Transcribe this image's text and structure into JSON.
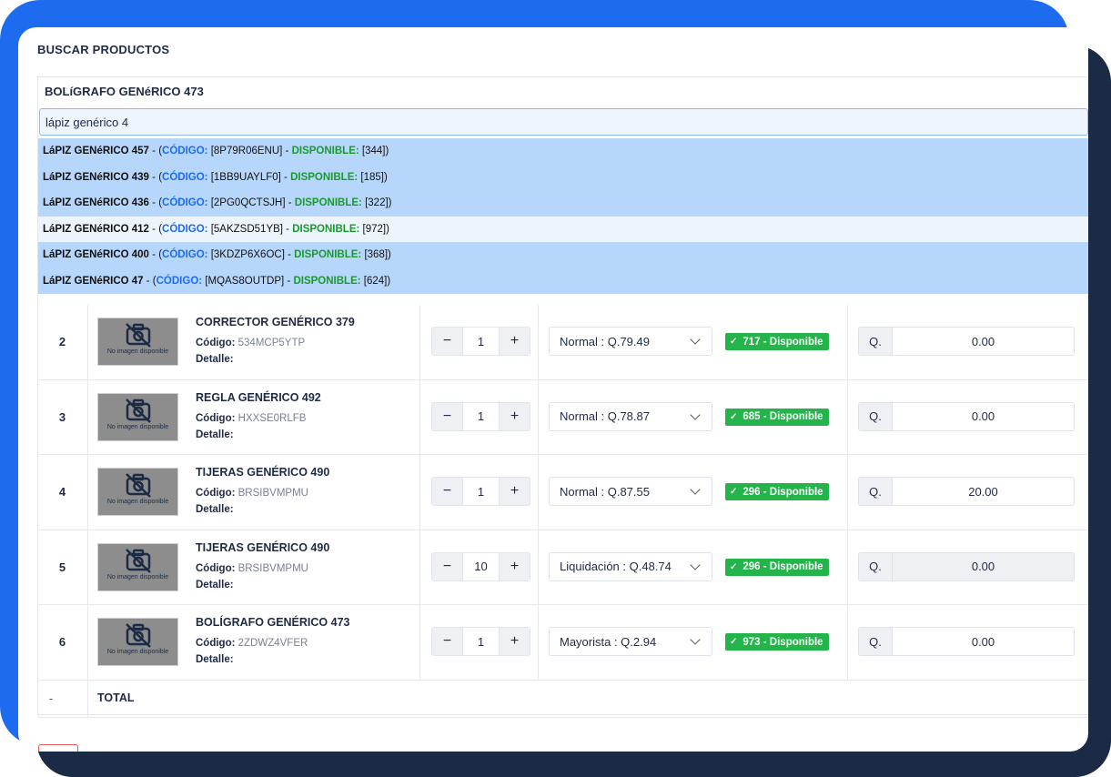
{
  "section_title": "BUSCAR PRODUCTOS",
  "selected_product": "BOLíGRAFO GENéRICO 473",
  "search": {
    "value": "lápiz genérico 4"
  },
  "dropdown_labels": {
    "code": "CÓDIGO:",
    "available": "DISPONIBLE:"
  },
  "dropdown": [
    {
      "name": "LáPIZ GENéRICO 457",
      "code": "[8P79R06ENU]",
      "available": "[344])",
      "highlight": true
    },
    {
      "name": "LáPIZ GENéRICO 439",
      "code": "[1BB9UAYLF0]",
      "available": "[185])",
      "highlight": true
    },
    {
      "name": "LáPIZ GENéRICO 436",
      "code": "[2PG0QCTSJH]",
      "available": "[322])",
      "highlight": true
    },
    {
      "name": "LáPIZ GENéRICO 412",
      "code": "[5AKZSD51YB]",
      "available": "[972])",
      "highlight": false
    },
    {
      "name": "LáPIZ GENéRICO 400",
      "code": "[3KDZP6X6OC]",
      "available": "[368])",
      "highlight": true
    },
    {
      "name": "LáPIZ GENéRICO 47",
      "code": "[MQAS8OUTDP]",
      "available": "[624])",
      "highlight": true
    }
  ],
  "labels": {
    "code": "Código:",
    "detail": "Detalle:",
    "no_image": "No imagen disponible",
    "currency": "Q.",
    "minus": "−",
    "plus": "+"
  },
  "rows": [
    {
      "num": "2",
      "name": "CORRECTOR GENÉRICO 379",
      "code": "534MCP5YTP",
      "qty": "1",
      "price_type": "Normal : Q.79.49",
      "badge": "717 - Disponible",
      "discount": "0.00",
      "discount_disabled": false
    },
    {
      "num": "3",
      "name": "REGLA GENÉRICO 492",
      "code": "HXXSE0RLFB",
      "qty": "1",
      "price_type": "Normal : Q.78.87",
      "badge": "685 - Disponible",
      "discount": "0.00",
      "discount_disabled": false
    },
    {
      "num": "4",
      "name": "TIJERAS GENÉRICO 490",
      "code": "BRSIBVMPMU",
      "qty": "1",
      "price_type": "Normal : Q.87.55",
      "badge": "296 - Disponible",
      "discount": "20.00",
      "discount_disabled": false
    },
    {
      "num": "5",
      "name": "TIJERAS GENÉRICO 490",
      "code": "BRSIBVMPMU",
      "qty": "10",
      "price_type": "Liquidación : Q.48.74",
      "badge": "296 - Disponible",
      "discount": "0.00",
      "discount_disabled": true
    },
    {
      "num": "6",
      "name": "BOLÍGRAFO GENÉRICO 473",
      "code": "2ZDWZ4VFER",
      "qty": "1",
      "price_type": "Mayorista : Q.2.94",
      "badge": "973 - Disponible",
      "discount": "0.00",
      "discount_disabled": false
    }
  ],
  "total": {
    "dash": "-",
    "label": "TOTAL"
  },
  "colors": {
    "accent_blue": "#1d6cf0",
    "navy": "#1b2b45",
    "success_green": "#24b54a",
    "dropdown_highlight": "#b7d6fb"
  }
}
